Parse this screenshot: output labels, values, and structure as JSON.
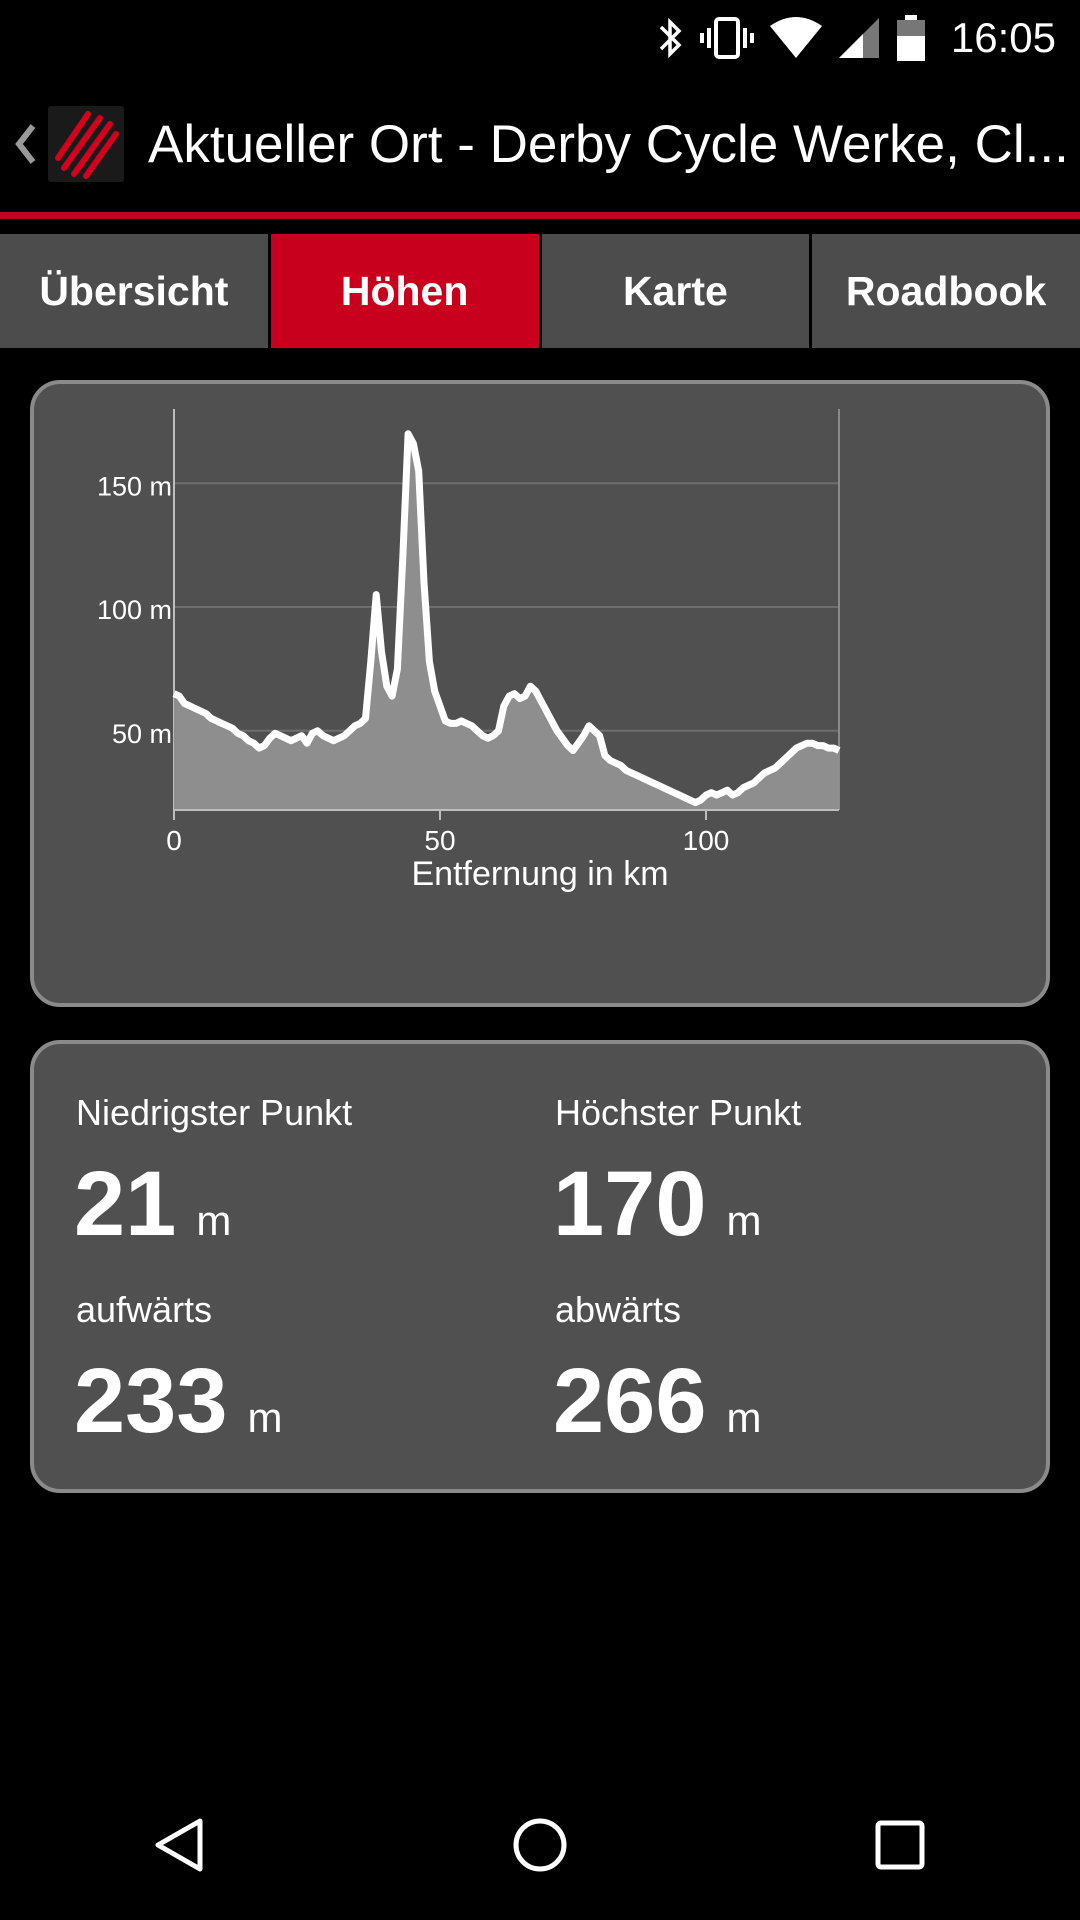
{
  "status": {
    "time": "16:05",
    "icons": [
      "bluetooth-icon",
      "vibrate-icon",
      "wifi-icon",
      "signal-icon",
      "battery-icon"
    ]
  },
  "appbar": {
    "back_icon": "chevron-left-icon",
    "logo_icon": "app-logo-icon",
    "title": "Aktueller Ort - Derby Cycle Werke, Cl..."
  },
  "colors": {
    "accent": "#c8001e",
    "card_bg": "#505050",
    "tab_bg": "#4c4c4c"
  },
  "tabs": [
    {
      "label": "Übersicht",
      "active": false
    },
    {
      "label": "Höhen",
      "active": true
    },
    {
      "label": "Karte",
      "active": false
    },
    {
      "label": "Roadbook",
      "active": false
    }
  ],
  "chart_data": {
    "type": "area",
    "xlabel": "Entfernung in km",
    "ylabel": "",
    "xlim": [
      0,
      125
    ],
    "ylim": [
      18,
      180
    ],
    "x_ticks": [
      {
        "value": 0,
        "label": "0"
      },
      {
        "value": 50,
        "label": "50"
      },
      {
        "value": 100,
        "label": "100"
      }
    ],
    "y_ticks": [
      {
        "value": 50,
        "label": "50 m"
      },
      {
        "value": 100,
        "label": "100 m"
      },
      {
        "value": 150,
        "label": "150 m"
      }
    ],
    "grid": true,
    "series": [
      {
        "x": [
          0,
          1,
          2,
          3,
          4,
          5,
          6,
          7,
          8,
          9,
          10,
          11,
          12,
          13,
          14,
          15,
          16,
          17,
          18,
          19,
          20,
          21,
          22,
          23,
          24,
          25,
          26,
          27,
          28,
          29,
          30,
          31,
          32,
          33,
          34,
          35,
          36,
          37,
          38,
          39,
          40,
          41,
          42,
          43,
          44,
          45,
          46,
          47,
          48,
          49,
          50,
          51,
          52,
          53,
          54,
          55,
          56,
          57,
          58,
          59,
          60,
          61,
          62,
          63,
          64,
          65,
          66,
          67,
          68,
          69,
          70,
          71,
          72,
          73,
          74,
          75,
          76,
          77,
          78,
          79,
          80,
          81,
          82,
          83,
          84,
          85,
          86,
          87,
          88,
          89,
          90,
          91,
          92,
          93,
          94,
          95,
          96,
          97,
          98,
          99,
          100,
          101,
          102,
          103,
          104,
          105,
          106,
          107,
          108,
          109,
          110,
          111,
          112,
          113,
          114,
          115,
          116,
          117,
          118,
          119,
          120,
          121,
          122,
          123,
          124,
          125
        ],
        "y": [
          65,
          64,
          61,
          60,
          59,
          58,
          57,
          55,
          54,
          53,
          52,
          51,
          49,
          48,
          46,
          45,
          43,
          44,
          47,
          49,
          48,
          47,
          46,
          47,
          48,
          45,
          49,
          50,
          48,
          47,
          46,
          47,
          48,
          50,
          52,
          53,
          55,
          78,
          105,
          82,
          68,
          64,
          75,
          120,
          170,
          166,
          155,
          110,
          78,
          66,
          60,
          54,
          53,
          53,
          54,
          53,
          52,
          50,
          48,
          47,
          48,
          50,
          60,
          64,
          65,
          63,
          64,
          68,
          66,
          62,
          58,
          54,
          50,
          47,
          44,
          42,
          45,
          48,
          52,
          50,
          48,
          40,
          38,
          37,
          36,
          34,
          33,
          32,
          31,
          30,
          29,
          28,
          27,
          26,
          25,
          24,
          23,
          22,
          21,
          22,
          24,
          25,
          24,
          25,
          26,
          24,
          25,
          27,
          28,
          29,
          31,
          33,
          34,
          35,
          37,
          39,
          41,
          43,
          44,
          45,
          45,
          44,
          44,
          43,
          43,
          42
        ]
      }
    ]
  },
  "stats": {
    "lowest_label": "Niedrigster Punkt",
    "lowest_value": "21",
    "lowest_unit": "m",
    "highest_label": "Höchster Punkt",
    "highest_value": "170",
    "highest_unit": "m",
    "up_label": "aufwärts",
    "up_value": "233",
    "up_unit": "m",
    "down_label": "abwärts",
    "down_value": "266",
    "down_unit": "m"
  },
  "navbar": {
    "back_icon": "nav-back-icon",
    "home_icon": "nav-home-icon",
    "recents_icon": "nav-recents-icon"
  }
}
